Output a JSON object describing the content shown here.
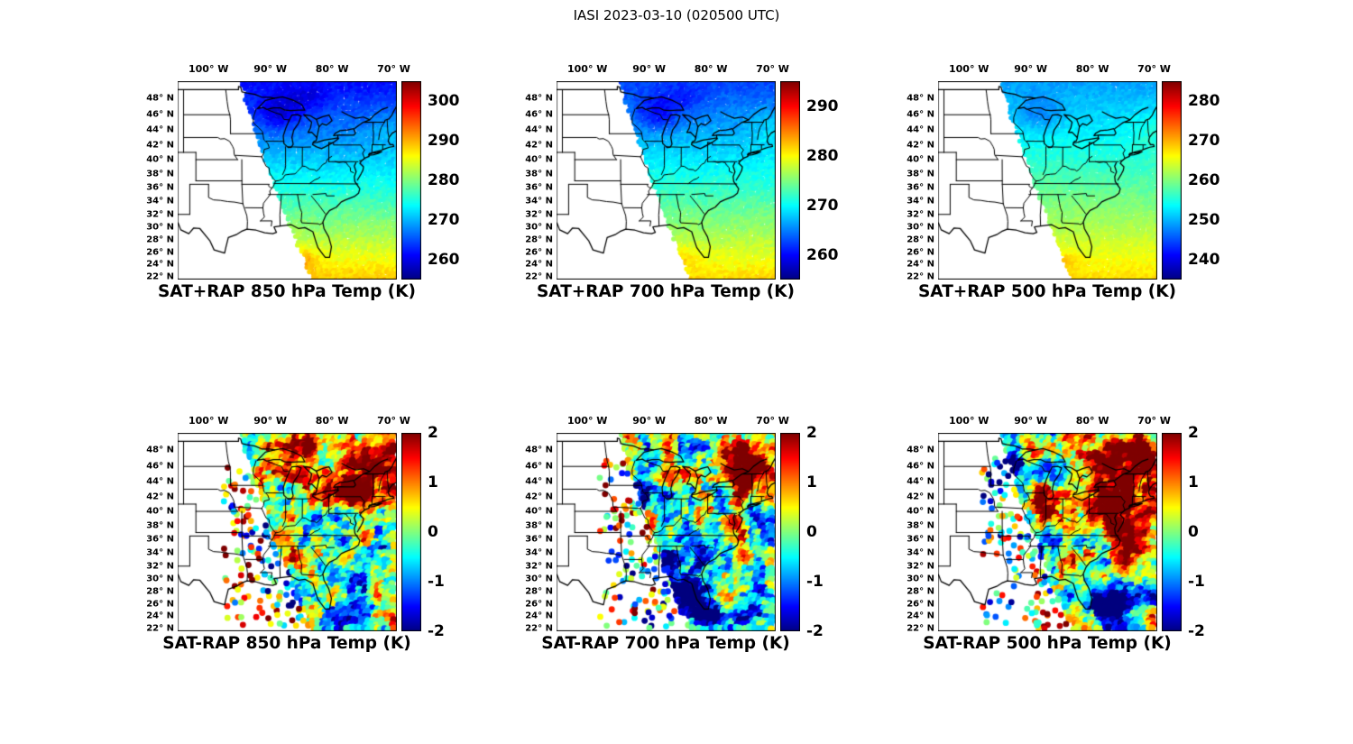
{
  "figure": {
    "title": "IASI 2023-03-10 (020500 UTC)"
  },
  "axes": {
    "lon_ticks": [
      {
        "label": "100° W",
        "deg": -100
      },
      {
        "label": "90° W",
        "deg": -90
      },
      {
        "label": "80° W",
        "deg": -80
      },
      {
        "label": "70° W",
        "deg": -70
      }
    ],
    "lat_ticks": [
      {
        "label": "48° N",
        "deg": 48
      },
      {
        "label": "46° N",
        "deg": 46
      },
      {
        "label": "44° N",
        "deg": 44
      },
      {
        "label": "42° N",
        "deg": 42
      },
      {
        "label": "40° N",
        "deg": 40
      },
      {
        "label": "38° N",
        "deg": 38
      },
      {
        "label": "36° N",
        "deg": 36
      },
      {
        "label": "34° N",
        "deg": 34
      },
      {
        "label": "32° N",
        "deg": 32
      },
      {
        "label": "30° N",
        "deg": 30
      },
      {
        "label": "28° N",
        "deg": 28
      },
      {
        "label": "26° N",
        "deg": 26
      },
      {
        "label": "24° N",
        "deg": 24
      },
      {
        "label": "22° N",
        "deg": 22
      }
    ]
  },
  "panels": [
    {
      "id": "sat-plus-rap-850",
      "title": "SAT+RAP 850 hPa Temp (K)",
      "colorbar_ticks": [
        "300",
        "290",
        "280",
        "270",
        "260"
      ]
    },
    {
      "id": "sat-plus-rap-700",
      "title": "SAT+RAP 700 hPa Temp (K)",
      "colorbar_ticks": [
        "290",
        "280",
        "270",
        "260"
      ]
    },
    {
      "id": "sat-plus-rap-500",
      "title": "SAT+RAP 500 hPa Temp (K)",
      "colorbar_ticks": [
        "280",
        "270",
        "260",
        "250",
        "240"
      ]
    },
    {
      "id": "sat-minus-rap-850",
      "title": "SAT-RAP 850 hPa Temp (K)",
      "colorbar_ticks": [
        "2",
        "1",
        "0",
        "-1",
        "-2"
      ]
    },
    {
      "id": "sat-minus-rap-700",
      "title": "SAT-RAP 700 hPa Temp (K)",
      "colorbar_ticks": [
        "2",
        "1",
        "0",
        "-1",
        "-2"
      ]
    },
    {
      "id": "sat-minus-rap-500",
      "title": "SAT-RAP 500 hPa Temp (K)",
      "colorbar_ticks": [
        "2",
        "1",
        "0",
        "-1",
        "-2"
      ]
    }
  ],
  "chart_data": {
    "type": "heatmap",
    "subtype": "geographic satellite-swath temperature maps, 2 rows x 3 columns",
    "suptitle": "IASI 2023-03-10 (020500 UTC)",
    "instrument": "IASI",
    "date": "2023-03-10",
    "time_utc": "020500",
    "colormap": "jet",
    "legend_position": "right colorbar per panel",
    "map_extent": {
      "lon_deg_w": [
        105,
        69.5
      ],
      "lat_deg_n": [
        21.5,
        50
      ]
    },
    "lon_tick_values_deg_w": [
      100,
      90,
      80,
      70
    ],
    "lat_tick_values_deg_n": [
      48,
      46,
      44,
      42,
      40,
      38,
      36,
      34,
      32,
      30,
      28,
      26,
      24,
      22
    ],
    "swath_note": "Satellite swath covers the central/eastern US; its diagonal left edge runs from about 95W at 50N to about 83W at 22N. Outside the swath only the base map (state borders, coastline, Great Lakes) is shown.",
    "panels": [
      {
        "row": 1,
        "col": 1,
        "title": "SAT+RAP 850 hPa Temp (K)",
        "field": "SAT+RAP temperature",
        "level_hPa": 850,
        "units": "K",
        "colorbar_tick_values": [
          300,
          290,
          280,
          270,
          260
        ],
        "approx_value_range_on_map": [
          258,
          290
        ],
        "pattern": "warm ~288 K (yellow/orange) in the far south grading to ~262 K (blue) in the north; darkest blue pocket over the upper Great Lakes; orange speckles near the southwest swath edge"
      },
      {
        "row": 1,
        "col": 2,
        "title": "SAT+RAP 700 hPa Temp (K)",
        "field": "SAT+RAP temperature",
        "level_hPa": 700,
        "units": "K",
        "colorbar_tick_values": [
          290,
          280,
          270,
          260
        ],
        "approx_value_range_on_map": [
          260,
          283
        ],
        "pattern": "yellow-green ~281 K in the south to blue ~262 K in the north; cold pocket over the Great Lakes"
      },
      {
        "row": 1,
        "col": 3,
        "title": "SAT+RAP 500 hPa Temp (K)",
        "field": "SAT+RAP temperature",
        "level_hPa": 500,
        "units": "K",
        "colorbar_tick_values": [
          280,
          270,
          260,
          250,
          240
        ],
        "approx_value_range_on_map": [
          245,
          270
        ],
        "pattern": "yellow ~268 K in the south to cyan/blue ~249 K in the north"
      },
      {
        "row": 2,
        "col": 1,
        "title": "SAT-RAP 850 hPa Temp (K)",
        "field": "SAT minus RAP temperature difference",
        "level_hPa": 850,
        "units": "K",
        "colorbar_tick_values": [
          2,
          1,
          0,
          -1,
          -2
        ],
        "approx_value_range_on_map": [
          -2,
          2
        ],
        "pattern": "noisy +/-2 K differences; large dark-red (>+2 K) cluster over the Northeast, red patch near Iowa/Missouri, dark-blue dots over Alabama/Georgia, mixed cyan/yellow noise over the Gulf; sparse scattered dots west of the dense swath"
      },
      {
        "row": 2,
        "col": 2,
        "title": "SAT-RAP 700 hPa Temp (K)",
        "field": "SAT minus RAP temperature difference",
        "level_hPa": 700,
        "units": "K",
        "colorbar_tick_values": [
          2,
          1,
          0,
          -1,
          -2
        ],
        "approx_value_range_on_map": [
          -2,
          2
        ],
        "pattern": "red positive cluster over the Northeast, broad dark-blue negative region over the Southeast and Gulf, scattered blue dots over the upper Midwest"
      },
      {
        "row": 2,
        "col": 3,
        "title": "SAT-RAP 500 hPa Temp (K)",
        "field": "SAT minus RAP temperature difference",
        "level_hPa": 500,
        "units": "K",
        "colorbar_tick_values": [
          2,
          1,
          0,
          -1,
          -2
        ],
        "approx_value_range_on_map": [
          -2,
          2
        ],
        "pattern": "dominant dark-red positive differences over the Mid-Atlantic/Northeast and near Lake Michigan, dark-blue negative region off the Southeast coast, cyan dots near the northwest swath edge"
      }
    ]
  }
}
